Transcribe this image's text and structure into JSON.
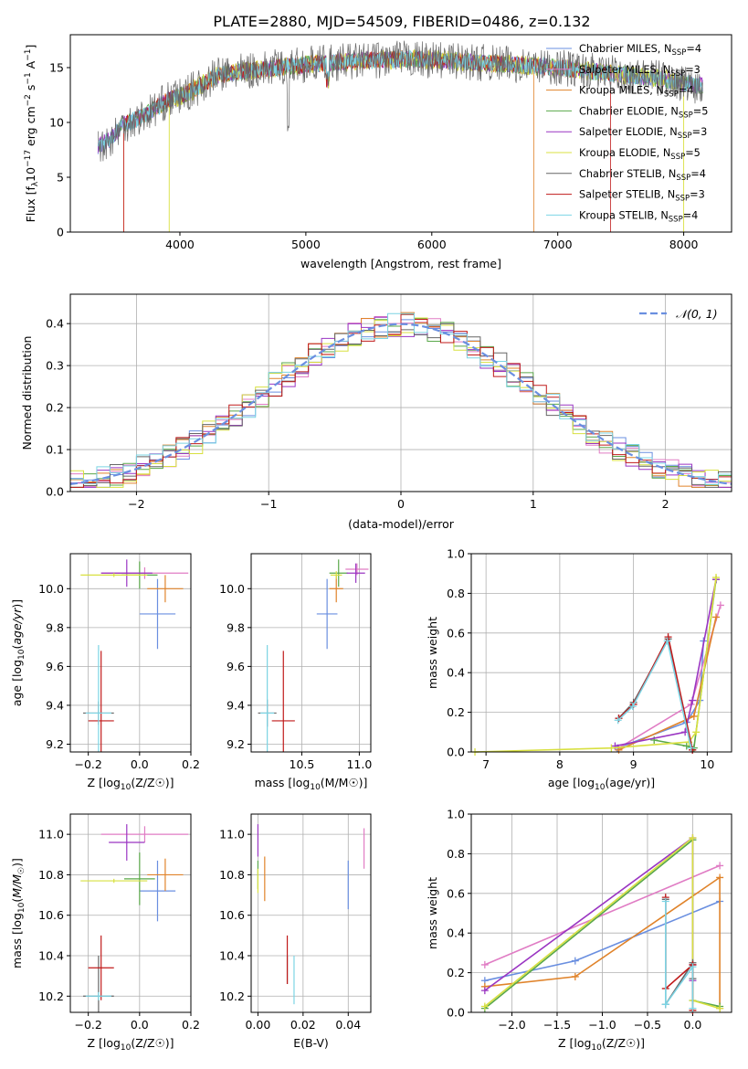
{
  "title": "PLATE=2880, MJD=54509, FIBERID=0486, z=0.132",
  "colors": {
    "chabrier_miles": "#6a8fe0",
    "salpeter_miles": "#e07cc4",
    "kroupa_miles": "#e0832a",
    "chabrier_elodie": "#5aa84a",
    "salpeter_elodie": "#9a35c2",
    "kroupa_elodie": "#d8e040",
    "chabrier_stelib": "#666666",
    "salpeter_stelib": "#c01a1a",
    "kroupa_stelib": "#7cd4e4",
    "gaussian": "#6a8fe0"
  },
  "chart_data": [
    {
      "id": "spectrum",
      "type": "line",
      "xlabel": "wavelength [Angstrom, rest frame]",
      "ylabel": "Flux [f_λ 10^-17 erg cm^-2 s^-1 A^-1]",
      "xlim": [
        3130,
        8380
      ],
      "ylim": [
        0,
        18
      ],
      "xticks": [
        "4000",
        "5000",
        "6000",
        "7000",
        "8000"
      ],
      "yticks": [
        "0",
        "5",
        "10",
        "15"
      ],
      "legend_position": "top-right",
      "legend": [
        {
          "name": "Chabrier MILES, N_SSP=4",
          "label": "Chabrier MILES, N",
          "sub": "SSP",
          "suffix": "=4",
          "color": "#6a8fe0"
        },
        {
          "name": "Salpeter MILES, N_SSP=3",
          "label": "Salpeter MILES, N",
          "sub": "SSP",
          "suffix": "=3",
          "color": "#e07cc4"
        },
        {
          "name": "Kroupa MILES, N_SSP=4",
          "label": "Kroupa MILES, N",
          "sub": "SSP",
          "suffix": "=4",
          "color": "#e0832a"
        },
        {
          "name": "Chabrier ELODIE, N_SSP=5",
          "label": "Chabrier ELODIE, N",
          "sub": "SSP",
          "suffix": "=5",
          "color": "#5aa84a"
        },
        {
          "name": "Salpeter ELODIE, N_SSP=3",
          "label": "Salpeter ELODIE, N",
          "sub": "SSP",
          "suffix": "=3",
          "color": "#9a35c2"
        },
        {
          "name": "Kroupa ELODIE, N_SSP=5",
          "label": "Kroupa ELODIE, N",
          "sub": "SSP",
          "suffix": "=5",
          "color": "#d8e040"
        },
        {
          "name": "Chabrier STELIB, N_SSP=4",
          "label": "Chabrier STELIB, N",
          "sub": "SSP",
          "suffix": "=4",
          "color": "#666666"
        },
        {
          "name": "Salpeter STELIB, N_SSP=3",
          "label": "Salpeter STELIB, N",
          "sub": "SSP",
          "suffix": "=3",
          "color": "#c01a1a"
        },
        {
          "name": "Kroupa STELIB, N_SSP=4",
          "label": "Kroupa STELIB, N",
          "sub": "SSP",
          "suffix": "=4",
          "color": "#7cd4e4"
        }
      ],
      "continuum": {
        "x": [
          3350,
          3450,
          3550,
          3700,
          3900,
          4050,
          4300,
          4600,
          5000,
          5400,
          5800,
          6200,
          6600,
          7000,
          7400,
          7800,
          8150
        ],
        "y": [
          7.8,
          8.5,
          9.8,
          10.5,
          12.0,
          12.6,
          14.3,
          14.8,
          15.3,
          15.6,
          15.8,
          15.6,
          15.3,
          15.0,
          14.5,
          14.0,
          13.3
        ]
      },
      "cutoffs": [
        {
          "color": "#e0832a",
          "start": 3555,
          "end": 6810
        },
        {
          "color": "#c01a1a",
          "start": 3555,
          "end": 7420
        },
        {
          "color": "#d8e040",
          "start": 3915,
          "end": 8000
        }
      ]
    },
    {
      "id": "residuals",
      "type": "histogram",
      "xlabel": "(data-model)/error",
      "ylabel": "Normed distribution",
      "xlim": [
        -2.5,
        2.5
      ],
      "ylim": [
        0,
        0.47
      ],
      "xticks": [
        -2,
        -1,
        0,
        1,
        2
      ],
      "xtick_labels": [
        "−2",
        "−1",
        "0",
        "1",
        "2"
      ],
      "yticks": [
        "0.0",
        "0.1",
        "0.2",
        "0.3",
        "0.4"
      ],
      "legend_position": "top-right",
      "legend": {
        "gaussian_label": "𝒩(0, 1)"
      }
    },
    {
      "id": "age_vs_Z",
      "type": "errorbar",
      "xlabel_main": "Z [log",
      "xlabel_sub": "10",
      "xlabel_tail": "(Z/Z",
      "ylabel": "age [log10(age/yr)]",
      "xlim": [
        -0.27,
        0.2
      ],
      "ylim": [
        9.16,
        10.18
      ],
      "xticks": [
        "−0.2",
        "0.0",
        "0.2"
      ],
      "yticks": [
        "9.2",
        "9.4",
        "9.6",
        "9.8",
        "10.0"
      ],
      "points": [
        {
          "color": "#6a8fe0",
          "x": 0.07,
          "y": 9.87,
          "xerr": 0.07,
          "yerr": 0.18
        },
        {
          "color": "#e07cc4",
          "x": 0.02,
          "y": 10.08,
          "xerr": 0.17,
          "yerr": 0.03
        },
        {
          "color": "#e0832a",
          "x": 0.1,
          "y": 10.0,
          "xerr": 0.07,
          "yerr": 0.07
        },
        {
          "color": "#5aa84a",
          "x": 0.0,
          "y": 10.07,
          "xerr": 0.07,
          "yerr": 0.07
        },
        {
          "color": "#9a35c2",
          "x": -0.05,
          "y": 10.08,
          "xerr": 0.1,
          "yerr": 0.07
        },
        {
          "color": "#d8e040",
          "x": -0.1,
          "y": 10.07,
          "xerr": 0.13,
          "yerr": 0.01
        },
        {
          "color": "#666666",
          "x": -0.16,
          "y": 9.36,
          "xerr": 0.06,
          "yerr": 0.06
        },
        {
          "color": "#c01a1a",
          "x": -0.15,
          "y": 9.32,
          "xerr": 0.05,
          "yerr": 0.36
        },
        {
          "color": "#7cd4e4",
          "x": -0.16,
          "y": 9.36,
          "xerr": 0.05,
          "yerr": 0.35
        }
      ]
    },
    {
      "id": "age_vs_mass",
      "type": "errorbar",
      "xlabel_main": "mass [log",
      "xlabel_sub": "10",
      "xlabel_tail": "(M/M",
      "xlim": [
        10.06,
        11.1
      ],
      "ylim": [
        9.16,
        10.18
      ],
      "xticks": [
        "10.5",
        "11.0"
      ],
      "yticks": [
        "9.2",
        "9.4",
        "9.6",
        "9.8",
        "10.0"
      ],
      "points": [
        {
          "color": "#6a8fe0",
          "x": 10.72,
          "y": 9.87,
          "xerr": 0.09,
          "yerr": 0.18
        },
        {
          "color": "#e07cc4",
          "x": 10.98,
          "y": 10.1,
          "xerr": 0.1,
          "yerr": 0.03
        },
        {
          "color": "#e0832a",
          "x": 10.8,
          "y": 10.0,
          "xerr": 0.06,
          "yerr": 0.07
        },
        {
          "color": "#5aa84a",
          "x": 10.82,
          "y": 10.08,
          "xerr": 0.08,
          "yerr": 0.07
        },
        {
          "color": "#9a35c2",
          "x": 10.97,
          "y": 10.08,
          "xerr": 0.08,
          "yerr": 0.05
        },
        {
          "color": "#d8e040",
          "x": 10.8,
          "y": 10.07,
          "xerr": 0.05,
          "yerr": 0.02
        },
        {
          "color": "#666666",
          "x": 10.2,
          "y": 9.36,
          "xerr": 0.08,
          "yerr": 0.07
        },
        {
          "color": "#c01a1a",
          "x": 10.34,
          "y": 9.32,
          "xerr": 0.1,
          "yerr": 0.36
        },
        {
          "color": "#7cd4e4",
          "x": 10.2,
          "y": 9.36,
          "xerr": 0.06,
          "yerr": 0.35
        }
      ]
    },
    {
      "id": "weight_vs_age",
      "type": "line",
      "xlabel_main": "age  [log",
      "xlabel_sub": "10",
      "xlabel_tail": "(age/yr)]",
      "ylabel": "mass weight",
      "xlim": [
        6.8,
        10.33
      ],
      "ylim": [
        0,
        1
      ],
      "xticks": [
        "7",
        "8",
        "9",
        "10"
      ],
      "yticks": [
        "0.0",
        "0.2",
        "0.4",
        "0.6",
        "0.8",
        "1.0"
      ],
      "series": [
        {
          "color": "#6a8fe0",
          "x": [
            8.78,
            9.72,
            9.9,
            9.95
          ],
          "y": [
            0.02,
            0.15,
            0.26,
            0.56
          ]
        },
        {
          "color": "#e07cc4",
          "x": [
            8.8,
            9.78,
            10.18
          ],
          "y": [
            0.02,
            0.24,
            0.74
          ]
        },
        {
          "color": "#e0832a",
          "x": [
            8.8,
            9.82,
            10.12
          ],
          "y": [
            0.01,
            0.18,
            0.68
          ]
        },
        {
          "color": "#5aa84a",
          "x": [
            9.28,
            9.72,
            9.82,
            10.12
          ],
          "y": [
            0.06,
            0.03,
            0.02,
            0.87
          ]
        },
        {
          "color": "#9a35c2",
          "x": [
            8.75,
            9.7,
            9.8,
            10.12
          ],
          "y": [
            0.03,
            0.1,
            0.26,
            0.87
          ]
        },
        {
          "color": "#d8e040",
          "x": [
            6.85,
            8.7,
            9.75,
            9.85,
            10.12
          ],
          "y": [
            0.0,
            0.02,
            0.05,
            0.1,
            0.88
          ]
        },
        {
          "color": "#666666",
          "x": [
            8.8,
            9.0,
            9.47,
            9.8
          ],
          "y": [
            0.17,
            0.25,
            0.57,
            0.01
          ]
        },
        {
          "color": "#c01a1a",
          "x": [
            8.8,
            9.0,
            9.47,
            9.8
          ],
          "y": [
            0.17,
            0.24,
            0.58,
            0.01
          ]
        },
        {
          "color": "#7cd4e4",
          "x": [
            8.79,
            8.99,
            9.46,
            9.78
          ],
          "y": [
            0.16,
            0.23,
            0.56,
            0.02
          ]
        }
      ]
    },
    {
      "id": "mass_vs_Z",
      "type": "errorbar",
      "xlabel_main": "Z [log",
      "xlabel_sub": "10",
      "xlabel_tail": "(Z/Z",
      "ylabel": "mass [log10(M/Msun)]",
      "xlim": [
        -0.27,
        0.2
      ],
      "ylim": [
        10.12,
        11.1
      ],
      "xticks": [
        "−0.2",
        "0.0",
        "0.2"
      ],
      "yticks": [
        "10.2",
        "10.4",
        "10.6",
        "10.8",
        "11.0"
      ],
      "points": [
        {
          "color": "#6a8fe0",
          "x": 0.07,
          "y": 10.72,
          "xerr": 0.07,
          "yerr": 0.15
        },
        {
          "color": "#e07cc4",
          "x": 0.02,
          "y": 11.0,
          "xerr": 0.17,
          "yerr": 0.04
        },
        {
          "color": "#e0832a",
          "x": 0.1,
          "y": 10.8,
          "xerr": 0.07,
          "yerr": 0.08
        },
        {
          "color": "#5aa84a",
          "x": 0.0,
          "y": 10.78,
          "xerr": 0.06,
          "yerr": 0.13
        },
        {
          "color": "#9a35c2",
          "x": -0.05,
          "y": 10.96,
          "xerr": 0.07,
          "yerr": 0.09
        },
        {
          "color": "#d8e040",
          "x": -0.1,
          "y": 10.77,
          "xerr": 0.13,
          "yerr": 0.01
        },
        {
          "color": "#666666",
          "x": -0.16,
          "y": 10.2,
          "xerr": 0.06,
          "yerr": 0.2
        },
        {
          "color": "#c01a1a",
          "x": -0.15,
          "y": 10.34,
          "xerr": 0.05,
          "yerr": 0.16
        },
        {
          "color": "#7cd4e4",
          "x": -0.16,
          "y": 10.2,
          "xerr": 0.05,
          "yerr": 0.02
        }
      ]
    },
    {
      "id": "mass_vs_ebv",
      "type": "errorbar",
      "xlabel": "E(B-V)",
      "xlim": [
        -0.003,
        0.05
      ],
      "ylim": [
        10.12,
        11.1
      ],
      "xticks": [
        "0.00",
        "0.02",
        "0.04"
      ],
      "yticks": [
        "10.2",
        "10.4",
        "10.6",
        "10.8",
        "11.0"
      ],
      "points": [
        {
          "color": "#6a8fe0",
          "x": 0.04,
          "y": 10.75,
          "xerr": 0.0,
          "yerr": 0.12
        },
        {
          "color": "#e07cc4",
          "x": 0.047,
          "y": 10.93,
          "xerr": 0.0,
          "yerr": 0.1
        },
        {
          "color": "#e0832a",
          "x": 0.003,
          "y": 10.78,
          "xerr": 0.0,
          "yerr": 0.11
        },
        {
          "color": "#5aa84a",
          "x": 0.0,
          "y": 10.8,
          "xerr": 0.0,
          "yerr": 0.07
        },
        {
          "color": "#9a35c2",
          "x": 0.0,
          "y": 10.97,
          "xerr": 0.0,
          "yerr": 0.08
        },
        {
          "color": "#d8e040",
          "x": 0.0,
          "y": 10.77,
          "xerr": 0.0,
          "yerr": 0.06
        },
        {
          "color": "#666666",
          "x": 0.013,
          "y": 10.33,
          "xerr": 0.0,
          "yerr": 0.07
        },
        {
          "color": "#c01a1a",
          "x": 0.013,
          "y": 10.38,
          "xerr": 0.0,
          "yerr": 0.12
        },
        {
          "color": "#7cd4e4",
          "x": 0.016,
          "y": 10.28,
          "xerr": 0.0,
          "yerr": 0.12
        }
      ]
    },
    {
      "id": "weight_vs_Z",
      "type": "line",
      "xlabel_main": "Z [log",
      "xlabel_sub": "10",
      "xlabel_tail": "(Z/Z",
      "ylabel": "mass weight",
      "xlim": [
        -2.45,
        0.43
      ],
      "ylim": [
        0,
        1
      ],
      "xticks": [
        -2.0,
        -1.5,
        -1.0,
        -0.5,
        0.0
      ],
      "xtick_labels": [
        "−2.0",
        "−1.5",
        "−1.0",
        "−0.5",
        "0.0"
      ],
      "yticks": [
        "0.0",
        "0.2",
        "0.4",
        "0.6",
        "0.8",
        "1.0"
      ],
      "series": [
        {
          "color": "#6a8fe0",
          "x": [
            -2.3,
            -1.3,
            0.3
          ],
          "y": [
            0.16,
            0.26,
            0.56
          ]
        },
        {
          "color": "#e07cc4",
          "x": [
            -2.3,
            0.3
          ],
          "y": [
            0.24,
            0.74
          ]
        },
        {
          "color": "#e0832a",
          "x": [
            -2.3,
            -1.3,
            0.3,
            0.3
          ],
          "y": [
            0.13,
            0.18,
            0.68,
            0.02
          ]
        },
        {
          "color": "#5aa84a",
          "x": [
            -2.3,
            0.0,
            0.0,
            0.3
          ],
          "y": [
            0.02,
            0.87,
            0.06,
            0.03
          ]
        },
        {
          "color": "#9a35c2",
          "x": [
            -2.3,
            0.0,
            0.0,
            0.0
          ],
          "y": [
            0.11,
            0.88,
            0.24,
            0.16
          ]
        },
        {
          "color": "#d8e040",
          "x": [
            -2.3,
            0.0,
            0.0,
            0.3
          ],
          "y": [
            0.03,
            0.88,
            0.06,
            0.02
          ]
        },
        {
          "color": "#666666",
          "x": [
            -0.3,
            -0.3,
            0.0,
            0.0
          ],
          "y": [
            0.57,
            0.04,
            0.25,
            0.17
          ]
        },
        {
          "color": "#c01a1a",
          "x": [
            -0.3,
            -0.3,
            0.0,
            0.0
          ],
          "y": [
            0.58,
            0.12,
            0.24,
            0.01
          ]
        },
        {
          "color": "#7cd4e4",
          "x": [
            -0.3,
            -0.3,
            0.0,
            0.0
          ],
          "y": [
            0.56,
            0.04,
            0.23,
            0.02
          ]
        }
      ]
    }
  ]
}
